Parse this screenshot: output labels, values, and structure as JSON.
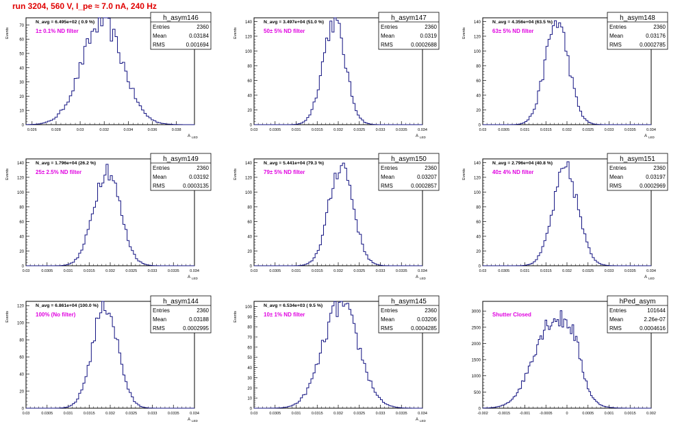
{
  "page": {
    "run_title": "run 3204,   560 V, I_pe ≈ 7.0 nA, 240 Hz"
  },
  "chart_data": [
    {
      "type": "bar",
      "name": "h_asym146",
      "ylabel": "Events",
      "xlabel": "A",
      "xlabel_sub": "LED",
      "xlim": [
        0.0255,
        0.0395
      ],
      "ylim": [
        0,
        75
      ],
      "xticks": [
        "0.026",
        "0.028",
        "0.03",
        "0.032",
        "0.034",
        "0.036",
        "0.038"
      ],
      "xtick_values": [
        0.026,
        0.028,
        0.03,
        0.032,
        0.034,
        0.036,
        0.038
      ],
      "yticks": [
        0,
        10,
        20,
        30,
        40,
        50,
        60,
        70
      ],
      "n_avg": "N_avg = 6.495e+02 ( 0.9 %)",
      "filter": "1± 0.1% ND filter",
      "stats": {
        "title": "h_asym146",
        "entries_label": "Entries",
        "entries": "2360",
        "mean_label": "Mean",
        "mean": "0.03184",
        "rms_label": "RMS",
        "rms": "0.001694"
      },
      "mean_value": 0.03184,
      "rms_value": 0.001694,
      "peak": 72
    },
    {
      "type": "bar",
      "name": "h_asym147",
      "ylabel": "Events",
      "xlabel": "A",
      "xlabel_sub": "LED",
      "xlim": [
        0.03,
        0.034
      ],
      "ylim": [
        0,
        145
      ],
      "xticks": [
        "0.03",
        "0.0305",
        "0.031",
        "0.0315",
        "0.032",
        "0.0325",
        "0.033",
        "0.0335",
        "0.034"
      ],
      "xtick_values": [
        0.03,
        0.0305,
        0.031,
        0.0315,
        0.032,
        0.0325,
        0.033,
        0.0335,
        0.034
      ],
      "yticks": [
        0,
        20,
        40,
        60,
        80,
        100,
        120,
        140
      ],
      "n_avg": "N_avg = 3.497e+04 (51.0 %)",
      "filter": "50± 5% ND filter",
      "stats": {
        "title": "h_asym147",
        "entries_label": "Entries",
        "entries": "2360",
        "mean_label": "Mean",
        "mean": "0.0319",
        "rms_label": "RMS",
        "rms": "0.0002688"
      },
      "mean_value": 0.0319,
      "rms_value": 0.0002688,
      "peak": 140
    },
    {
      "type": "bar",
      "name": "h_asym148",
      "ylabel": "Events",
      "xlabel": "A",
      "xlabel_sub": "LED",
      "xlim": [
        0.03,
        0.034
      ],
      "ylim": [
        0,
        145
      ],
      "xticks": [
        "0.03",
        "0.0305",
        "0.031",
        "0.0315",
        "0.032",
        "0.0325",
        "0.033",
        "0.0335",
        "0.034"
      ],
      "xtick_values": [
        0.03,
        0.0305,
        0.031,
        0.0315,
        0.032,
        0.0325,
        0.033,
        0.0335,
        0.034
      ],
      "yticks": [
        0,
        20,
        40,
        60,
        80,
        100,
        120,
        140
      ],
      "n_avg": "N_avg = 4.356e+04 (63.5 %)",
      "filter": "63± 5% ND filter",
      "stats": {
        "title": "h_asym148",
        "entries_label": "Entries",
        "entries": "2360",
        "mean_label": "Mean",
        "mean": "0.03176",
        "rms_label": "RMS",
        "rms": "0.0002785"
      },
      "mean_value": 0.03176,
      "rms_value": 0.0002785,
      "peak": 140
    },
    {
      "type": "bar",
      "name": "h_asym149",
      "ylabel": "Events",
      "xlabel": "A",
      "xlabel_sub": "LED",
      "xlim": [
        0.03,
        0.034
      ],
      "ylim": [
        0,
        145
      ],
      "xticks": [
        "0.03",
        "0.0305",
        "0.031",
        "0.0315",
        "0.032",
        "0.0325",
        "0.033",
        "0.0335",
        "0.034"
      ],
      "xtick_values": [
        0.03,
        0.0305,
        0.031,
        0.0315,
        0.032,
        0.0325,
        0.033,
        0.0335,
        0.034
      ],
      "yticks": [
        0,
        20,
        40,
        60,
        80,
        100,
        120,
        140
      ],
      "n_avg": "N_avg = 1.796e+04 (26.2 %)",
      "filter": "25± 2.5% ND filter",
      "stats": {
        "title": "h_asym149",
        "entries_label": "Entries",
        "entries": "2360",
        "mean_label": "Mean",
        "mean": "0.03192",
        "rms_label": "RMS",
        "rms": "0.0003135"
      },
      "mean_value": 0.03192,
      "rms_value": 0.0003135,
      "peak": 132
    },
    {
      "type": "bar",
      "name": "h_asym150",
      "ylabel": "Events",
      "xlabel": "A",
      "xlabel_sub": "LED",
      "xlim": [
        0.03,
        0.034
      ],
      "ylim": [
        0,
        145
      ],
      "xticks": [
        "0.03",
        "0.0305",
        "0.031",
        "0.0315",
        "0.032",
        "0.0325",
        "0.033",
        "0.0335",
        "0.034"
      ],
      "xtick_values": [
        0.03,
        0.0305,
        0.031,
        0.0315,
        0.032,
        0.0325,
        0.033,
        0.0335,
        0.034
      ],
      "yticks": [
        0,
        20,
        40,
        60,
        80,
        100,
        120,
        140
      ],
      "n_avg": "N_avg = 5.441e+04 (79.3 %)",
      "filter": "79± 5% ND filter",
      "stats": {
        "title": "h_asym150",
        "entries_label": "Entries",
        "entries": "2360",
        "mean_label": "Mean",
        "mean": "0.03207",
        "rms_label": "RMS",
        "rms": "0.0002857"
      },
      "mean_value": 0.03207,
      "rms_value": 0.0002857,
      "peak": 138
    },
    {
      "type": "bar",
      "name": "h_asym151",
      "ylabel": "Events",
      "xlabel": "A",
      "xlabel_sub": "LED",
      "xlim": [
        0.03,
        0.034
      ],
      "ylim": [
        0,
        145
      ],
      "xticks": [
        "0.03",
        "0.0305",
        "0.031",
        "0.0315",
        "0.032",
        "0.0325",
        "0.033",
        "0.0335",
        "0.034"
      ],
      "xtick_values": [
        0.03,
        0.0305,
        0.031,
        0.0315,
        0.032,
        0.0325,
        0.033,
        0.0335,
        0.034
      ],
      "yticks": [
        0,
        20,
        40,
        60,
        80,
        100,
        120,
        140
      ],
      "n_avg": "N_avg = 2.796e+04 (40.8 %)",
      "filter": "40± 4% ND filter",
      "stats": {
        "title": "h_asym151",
        "entries_label": "Entries",
        "entries": "2360",
        "mean_label": "Mean",
        "mean": "0.03197",
        "rms_label": "RMS",
        "rms": "0.0002969"
      },
      "mean_value": 0.03197,
      "rms_value": 0.0002969,
      "peak": 130
    },
    {
      "type": "bar",
      "name": "h_asym144",
      "ylabel": "Events",
      "xlabel": "A",
      "xlabel_sub": "LED",
      "xlim": [
        0.03,
        0.034
      ],
      "ylim": [
        0,
        125
      ],
      "xticks": [
        "0.03",
        "0.0305",
        "0.031",
        "0.0315",
        "0.032",
        "0.0325",
        "0.033",
        "0.0335",
        "0.034"
      ],
      "xtick_values": [
        0.03,
        0.0305,
        0.031,
        0.0315,
        0.032,
        0.0325,
        0.033,
        0.0335,
        0.034
      ],
      "yticks": [
        0,
        20,
        40,
        60,
        80,
        100,
        120
      ],
      "n_avg": "N_avg = 6.861e+04 (100.0 %)",
      "filter": "100% (No filter)",
      "stats": {
        "title": "h_asym144",
        "entries_label": "Entries",
        "entries": "2360",
        "mean_label": "Mean",
        "mean": "0.03188",
        "rms_label": "RMS",
        "rms": "0.0002995"
      },
      "mean_value": 0.03188,
      "rms_value": 0.0002995,
      "peak": 122
    },
    {
      "type": "bar",
      "name": "h_asym145",
      "ylabel": "Events",
      "xlabel": "A",
      "xlabel_sub": "LED",
      "xlim": [
        0.03,
        0.034
      ],
      "ylim": [
        0,
        105
      ],
      "xticks": [
        "0.03",
        "0.0305",
        "0.031",
        "0.0315",
        "0.032",
        "0.0325",
        "0.033",
        "0.0335",
        "0.034"
      ],
      "xtick_values": [
        0.03,
        0.0305,
        0.031,
        0.0315,
        0.032,
        0.0325,
        0.033,
        0.0335,
        0.034
      ],
      "yticks": [
        0,
        10,
        20,
        30,
        40,
        50,
        60,
        70,
        80,
        90,
        100
      ],
      "n_avg": "N_avg = 6.534e+03 ( 9.5 %)",
      "filter": "10± 1% ND filter",
      "stats": {
        "title": "h_asym145",
        "entries_label": "Entries",
        "entries": "2360",
        "mean_label": "Mean",
        "mean": "0.03206",
        "rms_label": "RMS",
        "rms": "0.0004285"
      },
      "mean_value": 0.03206,
      "rms_value": 0.0004285,
      "peak": 101
    },
    {
      "type": "bar",
      "name": "hPed_asym",
      "ylabel": "",
      "xlabel": "",
      "xlabel_sub": "",
      "xlim": [
        -0.002,
        0.002
      ],
      "ylim": [
        0,
        3300
      ],
      "xticks": [
        "-0.002",
        "-0.0015",
        "-0.001",
        "-0.0005",
        "0",
        "0.0005",
        "0.001",
        "0.0015",
        "0.002"
      ],
      "xtick_values": [
        -0.002,
        -0.0015,
        -0.001,
        -0.0005,
        0,
        0.0005,
        0.001,
        0.0015,
        0.002
      ],
      "yticks": [
        0,
        500,
        1000,
        1500,
        2000,
        2500,
        3000
      ],
      "n_avg": "",
      "filter": "Shutter Closed",
      "stats": {
        "title": "hPed_asym",
        "entries_label": "Entries",
        "entries": "101644",
        "mean_label": "Mean",
        "mean": "2.26e-07",
        "rms_label": "RMS",
        "rms": "0.0004616"
      },
      "mean_value": 0.0,
      "rms_value": 0.0004616,
      "peak": 3150,
      "pedestal": true
    }
  ],
  "colors": {
    "hist": "#101080",
    "filter_text": "#e000e0",
    "title": "#e00000",
    "axis": "#000000"
  }
}
